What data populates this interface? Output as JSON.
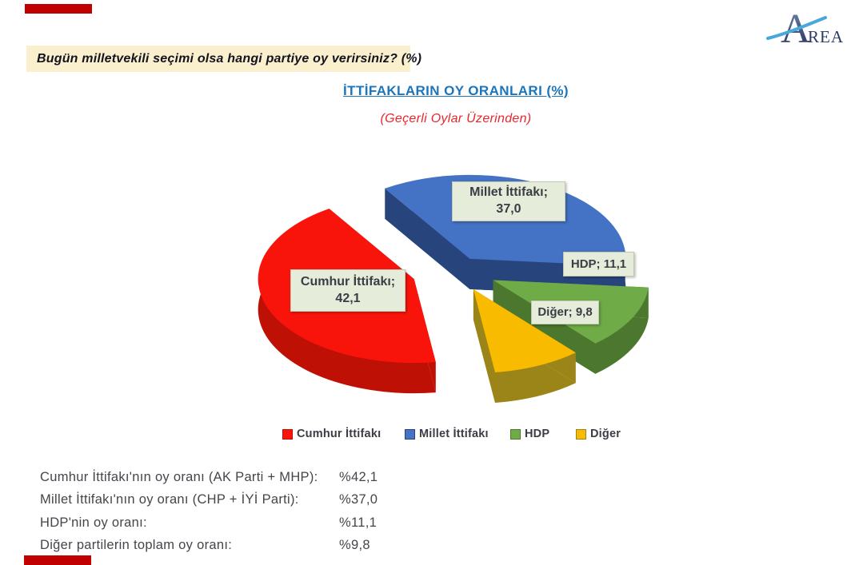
{
  "accent_bars": {
    "color": "#C00000"
  },
  "logo": {
    "big_letter": "A",
    "rest": "REA"
  },
  "question_bar": {
    "text": "Bugün milletvekili seçimi olsa hangi partiye oy verirsiniz? (%)"
  },
  "chart_data": {
    "type": "pie",
    "style": "3d-exploded",
    "title": "İTTİFAKLARIN OY ORANLARI (%)",
    "subtitle": "(Geçerli Oylar Üzerinden)",
    "unit": "%",
    "legend_position": "bottom",
    "slices": [
      {
        "label": "Cumhur İttifakı",
        "value": 42.1,
        "color": "#F9140B",
        "side_color": "#BE1005",
        "box_lines": [
          "Cumhur İttifakı;",
          "42,1"
        ]
      },
      {
        "label": "Millet İttifakı",
        "value": 37.0,
        "color": "#4472C4",
        "side_color": "#27457C",
        "box_lines": [
          "Millet İttifakı;",
          "37,0"
        ]
      },
      {
        "label": "HDP",
        "value": 11.1,
        "color": "#6FAC47",
        "side_color": "#4B782E",
        "box_lines": [
          "HDP; 11,1"
        ]
      },
      {
        "label": "Diğer",
        "value": 9.8,
        "color": "#F8BB00",
        "side_color": "#9C8518",
        "box_lines": [
          "Diğer; 9,8"
        ]
      }
    ]
  },
  "summary": {
    "rows": [
      {
        "label": "Cumhur İttifakı'nın oy oranı (AK Parti + MHP):",
        "value": "%42,1"
      },
      {
        "label": "Millet İttifakı'nın oy oranı (CHP + İYİ Parti):",
        "value": "%37,0"
      },
      {
        "label": "HDP'nin oy oranı:",
        "value": "%11,1"
      },
      {
        "label": "Diğer partilerin toplam oy oranı:",
        "value": "%9,8"
      }
    ]
  }
}
